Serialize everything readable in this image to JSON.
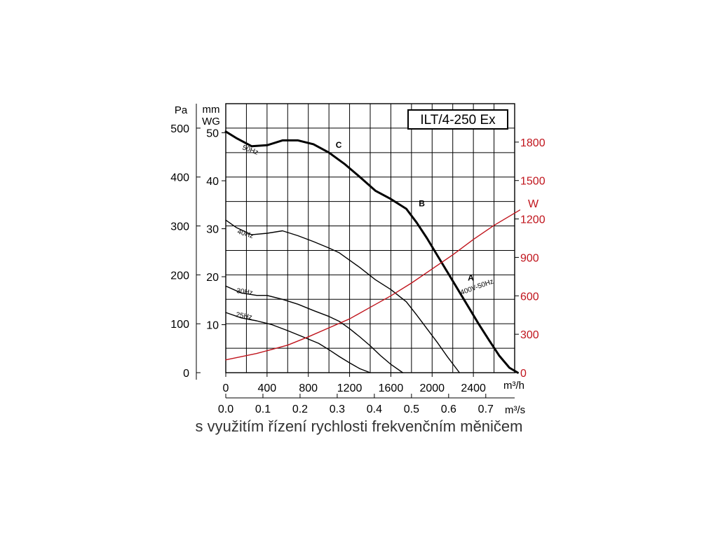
{
  "caption": "s využitím řízení rychlosti frekvenčním měničem",
  "chart_data": {
    "type": "line",
    "title": "ILT/4-250 Ex",
    "axes": {
      "x_primary": {
        "unit": "m³/h",
        "ticks": [
          0,
          400,
          800,
          1200,
          1600,
          2000,
          2400
        ],
        "range": [
          0,
          2800
        ]
      },
      "x_secondary": {
        "unit": "m³/s",
        "ticks": [
          "0.0",
          "0.1",
          "0.2",
          "0.3",
          "0.4",
          "0.5",
          "0.6",
          "0.7"
        ]
      },
      "y_left_pa": {
        "unit": "Pa",
        "ticks": [
          0,
          100,
          200,
          300,
          400,
          500
        ],
        "range": [
          0,
          550
        ]
      },
      "y_left_mmwg": {
        "unit_line1": "mm",
        "unit_line2": "WG",
        "ticks": [
          10,
          20,
          30,
          40,
          50
        ]
      },
      "y_right_w": {
        "unit": "W",
        "ticks": [
          0,
          300,
          600,
          900,
          1200,
          1500,
          1800
        ],
        "range": [
          0,
          2100
        ]
      }
    },
    "grid": true,
    "series": [
      {
        "name": "50Hz",
        "axis": "pa",
        "bold": true,
        "x": [
          0,
          100,
          250,
          400,
          550,
          700,
          850,
          1000,
          1150,
          1300,
          1450,
          1600,
          1750,
          1850,
          1950,
          2050,
          2150,
          2250,
          2350,
          2450,
          2550,
          2650,
          2750,
          2830
        ],
        "y": [
          493,
          480,
          463,
          465,
          475,
          475,
          467,
          450,
          427,
          400,
          372,
          355,
          335,
          307,
          275,
          240,
          205,
          170,
          135,
          100,
          67,
          35,
          10,
          0
        ]
      },
      {
        "name": "40Hz",
        "axis": "pa",
        "x": [
          0,
          100,
          250,
          400,
          550,
          700,
          850,
          1000,
          1100,
          1200,
          1300,
          1450,
          1600,
          1750,
          1850,
          1950,
          2050,
          2150,
          2265
        ],
        "y": [
          312,
          297,
          282,
          285,
          290,
          280,
          268,
          255,
          245,
          230,
          215,
          190,
          170,
          145,
          118,
          90,
          62,
          32,
          0
        ]
      },
      {
        "name": "30Hz",
        "axis": "pa",
        "x": [
          0,
          150,
          300,
          400,
          550,
          700,
          850,
          1000,
          1100,
          1200,
          1300,
          1400,
          1500,
          1600,
          1715
        ],
        "y": [
          177,
          163,
          158,
          158,
          150,
          140,
          127,
          115,
          105,
          90,
          73,
          55,
          35,
          17,
          0
        ]
      },
      {
        "name": "25Hz",
        "axis": "pa",
        "x": [
          0,
          150,
          300,
          450,
          600,
          750,
          900,
          1000,
          1100,
          1200,
          1300,
          1400
        ],
        "y": [
          123,
          112,
          106,
          98,
          86,
          73,
          60,
          47,
          33,
          20,
          8,
          0
        ]
      },
      {
        "name": "400V-50Hz",
        "axis": "w",
        "color": "#c0141c",
        "x": [
          0,
          300,
          600,
          800,
          1000,
          1200,
          1400,
          1600,
          1800,
          2000,
          2200,
          2400,
          2600,
          2850
        ],
        "y": [
          100,
          150,
          215,
          280,
          350,
          420,
          510,
          600,
          700,
          810,
          920,
          1040,
          1150,
          1270
        ]
      }
    ],
    "point_labels": [
      {
        "label": "A",
        "x": 2375,
        "y": 188
      },
      {
        "label": "B",
        "x": 1900,
        "y": 340
      },
      {
        "label": "C",
        "x": 1095,
        "y": 460
      }
    ]
  }
}
